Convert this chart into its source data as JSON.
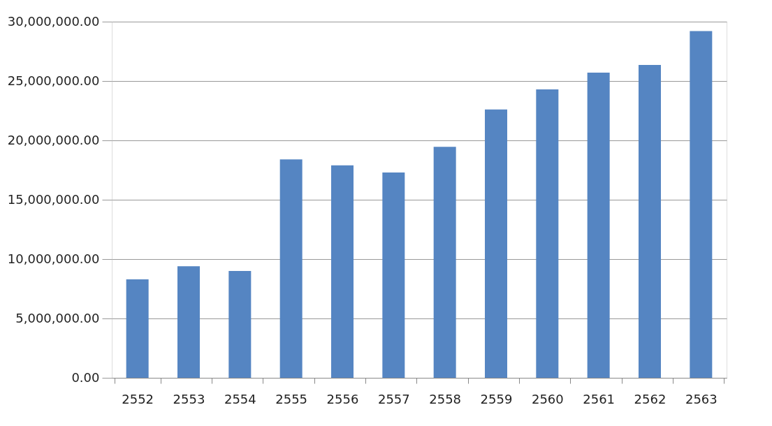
{
  "chart_data": {
    "type": "bar",
    "categories": [
      "2552",
      "2553",
      "2554",
      "2555",
      "2556",
      "2557",
      "2558",
      "2559",
      "2560",
      "2561",
      "2562",
      "2563"
    ],
    "values": [
      8300000,
      9400000,
      9000000,
      18400000,
      17900000,
      17300000,
      19450000,
      22600000,
      24300000,
      25700000,
      26350000,
      29200000
    ],
    "color": "#5585c2",
    "ylim": [
      0,
      30000000
    ],
    "yticks": [
      {
        "value": 0,
        "label": "0.00"
      },
      {
        "value": 5000000,
        "label": "5,000,000.00"
      },
      {
        "value": 10000000,
        "label": "10,000,000.00"
      },
      {
        "value": 15000000,
        "label": "15,000,000.00"
      },
      {
        "value": 20000000,
        "label": "20,000,000.00"
      },
      {
        "value": 25000000,
        "label": "25,000,000.00"
      },
      {
        "value": 30000000,
        "label": "30,000,000.00"
      }
    ],
    "grid": "y"
  }
}
